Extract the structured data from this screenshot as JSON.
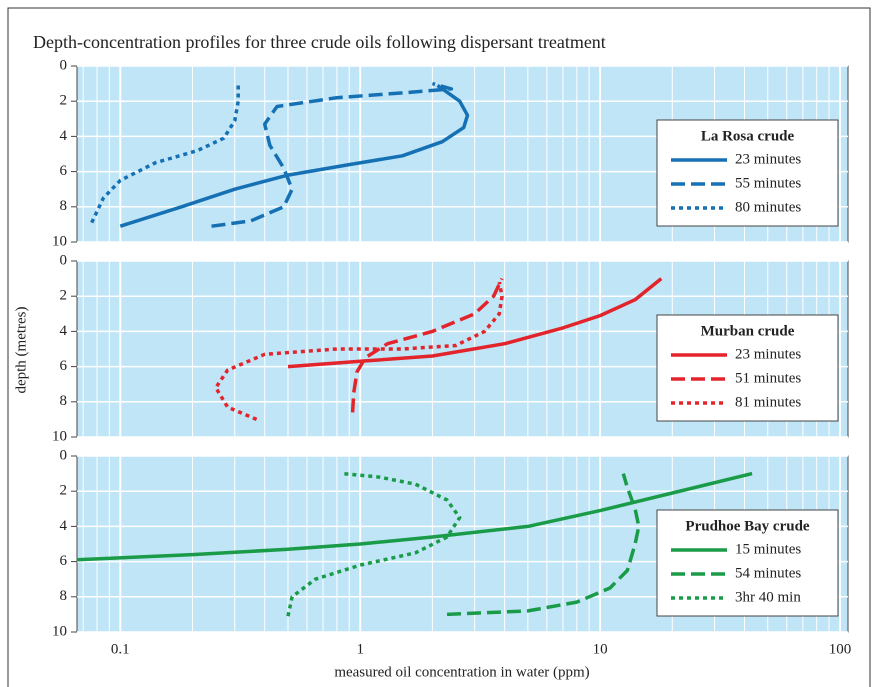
{
  "figure": {
    "title": "Depth-concentration profiles for three crude oils following dispersant treatment",
    "x_label": "measured oil concentration in water (ppm)",
    "y_label": "depth (metres)"
  },
  "chart_data": [
    {
      "type": "line",
      "legend_title": "La Rosa crude",
      "x_scale": "log",
      "xlim": [
        0.066,
        108
      ],
      "xticks": [
        0.1,
        1,
        10,
        100
      ],
      "ylim": [
        10,
        0
      ],
      "yticks": [
        0,
        2,
        4,
        6,
        8,
        10
      ],
      "grid": true,
      "background": "#bfe5f7",
      "series": [
        {
          "name": "23 minutes",
          "color": "#1670b4",
          "dash": "solid",
          "x": [
            0.1,
            0.18,
            0.3,
            0.5,
            0.9,
            1.5,
            2.2,
            2.7,
            2.8,
            2.6,
            2.1
          ],
          "values": [
            9.1,
            8,
            7,
            6.2,
            5.6,
            5.1,
            4.3,
            3.5,
            2.8,
            2,
            1.1
          ]
        },
        {
          "name": "55 minutes",
          "color": "#1670b4",
          "dash": "dashed",
          "x": [
            0.24,
            0.35,
            0.48,
            0.52,
            0.48,
            0.42,
            0.4,
            0.45,
            0.8,
            1.6,
            2.4,
            2.0
          ],
          "values": [
            9.1,
            8.8,
            8,
            7,
            5.8,
            4.5,
            3.3,
            2.3,
            1.8,
            1.5,
            1.3,
            1.0
          ]
        },
        {
          "name": "80 minutes",
          "color": "#1670b4",
          "dash": "dotted",
          "x": [
            0.076,
            0.085,
            0.1,
            0.14,
            0.21,
            0.27,
            0.3,
            0.31,
            0.31
          ],
          "values": [
            8.9,
            7.5,
            6.5,
            5.5,
            4.8,
            4.1,
            3.1,
            2,
            1
          ]
        }
      ]
    },
    {
      "type": "line",
      "legend_title": "Murban crude",
      "x_scale": "log",
      "xlim": [
        0.066,
        108
      ],
      "xticks": [
        0.1,
        1,
        10,
        100
      ],
      "ylim": [
        10,
        0
      ],
      "yticks": [
        0,
        2,
        4,
        6,
        8,
        10
      ],
      "grid": true,
      "background": "#bfe5f7",
      "series": [
        {
          "name": "23 minutes",
          "color": "#e3242b",
          "dash": "solid",
          "x": [
            0.5,
            1,
            2,
            4,
            7,
            10,
            14,
            18
          ],
          "values": [
            6,
            5.7,
            5.4,
            4.7,
            3.8,
            3.1,
            2.2,
            1
          ]
        },
        {
          "name": "51 minutes",
          "color": "#e3242b",
          "dash": "dashed",
          "x": [
            0.93,
            0.94,
            0.97,
            1.05,
            1.3,
            2,
            3,
            3.6,
            3.9
          ],
          "values": [
            8.6,
            7.5,
            6.3,
            5.5,
            4.7,
            4,
            3,
            2,
            1
          ]
        },
        {
          "name": "81 minutes",
          "color": "#e3242b",
          "dash": "dotted",
          "x": [
            0.37,
            0.28,
            0.25,
            0.28,
            0.4,
            0.8,
            1.5,
            2.5,
            3.3,
            3.8,
            3.9,
            3.8
          ],
          "values": [
            9,
            8.3,
            7.2,
            6.2,
            5.3,
            5,
            5,
            4.8,
            4,
            3,
            2,
            1.2
          ]
        }
      ]
    },
    {
      "type": "line",
      "legend_title": "Prudhoe Bay crude",
      "x_scale": "log",
      "xlim": [
        0.066,
        108
      ],
      "xticks": [
        0.1,
        1,
        10,
        100
      ],
      "ylim": [
        10,
        0
      ],
      "yticks": [
        0,
        2,
        4,
        6,
        8,
        10
      ],
      "grid": true,
      "background": "#bfe5f7",
      "series": [
        {
          "name": "15 minutes",
          "color": "#1a9b48",
          "dash": "solid",
          "x": [
            0.066,
            0.2,
            0.5,
            1,
            2,
            5,
            10,
            20,
            43
          ],
          "values": [
            5.9,
            5.6,
            5.3,
            5,
            4.6,
            4,
            3.1,
            2.1,
            1
          ]
        },
        {
          "name": "54 minutes",
          "color": "#1a9b48",
          "dash": "dashed",
          "x": [
            2.3,
            5,
            8,
            11,
            13,
            14,
            14.5,
            14,
            13,
            12.5
          ],
          "values": [
            9,
            8.8,
            8.3,
            7.5,
            6.5,
            5,
            4,
            3,
            1.8,
            1
          ]
        },
        {
          "name": "3hr 40 min",
          "color": "#1a9b48",
          "dash": "dotted",
          "x": [
            0.5,
            0.52,
            0.65,
            1,
            1.7,
            2.3,
            2.6,
            2.3,
            1.7,
            1.2,
            0.85
          ],
          "values": [
            9.1,
            8,
            7,
            6.2,
            5.5,
            4.6,
            3.5,
            2.5,
            1.6,
            1.2,
            1
          ]
        }
      ]
    }
  ]
}
